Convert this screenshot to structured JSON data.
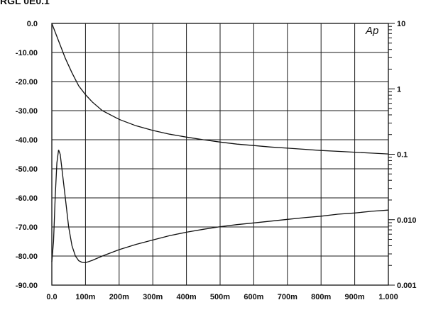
{
  "header": {
    "title": "RGL 0E0.1"
  },
  "chart_data": {
    "type": "line",
    "title": "",
    "logo": "Ap",
    "xlabel": "",
    "ylabel": "",
    "y2label": "",
    "x_ticks": [
      "0.0",
      "100m",
      "200m",
      "300m",
      "400m",
      "500m",
      "600m",
      "700m",
      "800m",
      "900m",
      "1.000"
    ],
    "y_ticks": [
      "0.0",
      "-10.00",
      "-20.00",
      "-30.00",
      "-40.00",
      "-50.00",
      "-60.00",
      "-70.00",
      "-80.00",
      "-90.00"
    ],
    "y2_ticks": [
      "10",
      "1",
      "0.1",
      "0.010",
      "0.001"
    ],
    "xlim": [
      0,
      1.0
    ],
    "ylim": [
      -90,
      0
    ],
    "y2lim": [
      0.001,
      10
    ],
    "y2_scale": "log",
    "grid": true,
    "series": [
      {
        "axis": "left",
        "x": [
          0.0,
          0.02,
          0.04,
          0.06,
          0.08,
          0.1,
          0.12,
          0.15,
          0.2,
          0.25,
          0.3,
          0.35,
          0.4,
          0.45,
          0.5,
          0.55,
          0.6,
          0.65,
          0.7,
          0.75,
          0.8,
          0.85,
          0.9,
          0.95,
          1.0
        ],
        "y": [
          0.0,
          -6.0,
          -12.0,
          -17.0,
          -21.5,
          -24.5,
          -27.0,
          -30.0,
          -33.0,
          -35.2,
          -36.8,
          -38.1,
          -39.1,
          -40.0,
          -40.8,
          -41.5,
          -42.0,
          -42.5,
          -42.9,
          -43.3,
          -43.7,
          -44.0,
          -44.3,
          -44.6,
          -44.9
        ]
      },
      {
        "axis": "left",
        "x": [
          0.0,
          0.005,
          0.01,
          0.015,
          0.02,
          0.025,
          0.03,
          0.04,
          0.05,
          0.06,
          0.07,
          0.08,
          0.09,
          0.1,
          0.12,
          0.15,
          0.2,
          0.25,
          0.3,
          0.35,
          0.4,
          0.45,
          0.5,
          0.55,
          0.6,
          0.65,
          0.7,
          0.75,
          0.8,
          0.85,
          0.9,
          0.95,
          1.0
        ],
        "y": [
          -82.0,
          -75.0,
          -60.0,
          -48.0,
          -43.5,
          -45.0,
          -50.0,
          -60.0,
          -70.0,
          -76.5,
          -80.0,
          -81.6,
          -82.2,
          -82.3,
          -81.5,
          -80.0,
          -77.8,
          -76.0,
          -74.5,
          -73.0,
          -71.8,
          -70.8,
          -69.9,
          -69.2,
          -68.6,
          -68.0,
          -67.4,
          -66.8,
          -66.3,
          -65.6,
          -65.2,
          -64.6,
          -64.2
        ]
      }
    ]
  }
}
